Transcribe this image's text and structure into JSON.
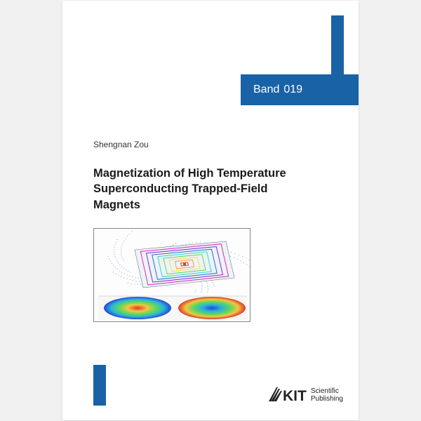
{
  "colors": {
    "brand_blue": "#1962a6",
    "background": "#f0f0f0",
    "paper": "#ffffff",
    "text_dark": "#1a1a1a",
    "text_mid": "#333333"
  },
  "header": {
    "band_label": "Band",
    "volume": "019"
  },
  "author": "Shengnan Zou",
  "title": "Magnetization of High Temperature Superconducting Trapped-Field Magnets",
  "publisher": {
    "logo_text": "KIT",
    "line1": "Scientific",
    "line2": "Publishing"
  },
  "figure": {
    "field_colors": [
      "#d93a2b",
      "#f5c542",
      "#5bd95b",
      "#2bb5d9",
      "#2646d9",
      "#b02bd9"
    ],
    "contour_colors": [
      "#d93a2b",
      "#f59e42",
      "#f5e142",
      "#5bd95b",
      "#2bd9c2",
      "#2b6cd9",
      "#7a2bd9",
      "#d92bb5"
    ],
    "dot_color": "#4a6a8a"
  }
}
